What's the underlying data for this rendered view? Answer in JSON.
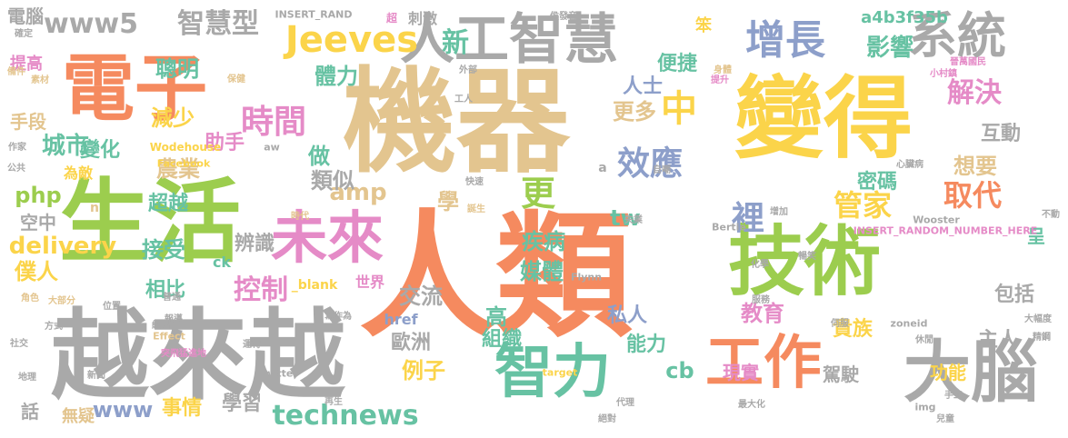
{
  "palette": {
    "orange": "#f58a5f",
    "tan": "#e3c58f",
    "green": "#9ccd4e",
    "yellow": "#fbd44a",
    "gray": "#a9a9a9",
    "blue": "#8d9fca",
    "teal": "#67c2a3",
    "pink": "#e58bc7"
  },
  "words": [
    {
      "text": "人類",
      "color": "orange"
    },
    {
      "text": "機器",
      "color": "tan"
    },
    {
      "text": "越來越",
      "color": "gray"
    },
    {
      "text": "變得",
      "color": "yellow"
    },
    {
      "text": "生活",
      "color": "green"
    },
    {
      "text": "電子",
      "color": "orange"
    },
    {
      "text": "技術",
      "color": "green"
    },
    {
      "text": "人工智慧",
      "color": "gray"
    },
    {
      "text": "大腦",
      "color": "gray"
    },
    {
      "text": "智力",
      "color": "teal"
    },
    {
      "text": "工作",
      "color": "orange"
    },
    {
      "text": "未來",
      "color": "pink"
    },
    {
      "text": "系統",
      "color": "gray"
    },
    {
      "text": "增長",
      "color": "blue"
    },
    {
      "text": "Jeeves",
      "color": "yellow"
    },
    {
      "text": "www5",
      "color": "gray"
    },
    {
      "text": "智慧型",
      "color": "gray"
    },
    {
      "text": "時間",
      "color": "pink"
    },
    {
      "text": "效應",
      "color": "blue"
    },
    {
      "text": "取代",
      "color": "orange"
    },
    {
      "text": "管家",
      "color": "yellow"
    },
    {
      "text": "解決",
      "color": "pink"
    },
    {
      "text": "technews",
      "color": "teal"
    },
    {
      "text": "delivery",
      "color": "yellow"
    },
    {
      "text": "新",
      "color": "teal"
    },
    {
      "text": "中",
      "color": "yellow"
    },
    {
      "text": "更",
      "color": "green"
    },
    {
      "text": "控制",
      "color": "pink"
    },
    {
      "text": "影響",
      "color": "teal"
    },
    {
      "text": "裡",
      "color": "blue"
    },
    {
      "text": "更多",
      "color": "tan"
    },
    {
      "text": "人士",
      "color": "blue"
    },
    {
      "text": "體力",
      "color": "teal"
    },
    {
      "text": "聰明",
      "color": "teal"
    },
    {
      "text": "城市",
      "color": "teal"
    },
    {
      "text": "農業",
      "color": "tan"
    },
    {
      "text": "amp",
      "color": "tan"
    },
    {
      "text": "tw",
      "color": "teal"
    },
    {
      "text": "php",
      "color": "green"
    },
    {
      "text": "做",
      "color": "teal"
    },
    {
      "text": "類似",
      "color": "gray"
    },
    {
      "text": "想要",
      "color": "tan"
    },
    {
      "text": "互動",
      "color": "gray"
    },
    {
      "text": "密碼",
      "color": "teal"
    },
    {
      "text": "便捷",
      "color": "teal"
    },
    {
      "text": "減少",
      "color": "yellow"
    },
    {
      "text": "手段",
      "color": "tan"
    },
    {
      "text": "變化",
      "color": "teal"
    },
    {
      "text": "助手",
      "color": "pink"
    },
    {
      "text": "超越",
      "color": "teal"
    },
    {
      "text": "空中",
      "color": "gray"
    },
    {
      "text": "接受",
      "color": "teal"
    },
    {
      "text": "辨識",
      "color": "gray"
    },
    {
      "text": "學",
      "color": "tan"
    },
    {
      "text": "疾病",
      "color": "teal"
    },
    {
      "text": "媒體",
      "color": "teal"
    },
    {
      "text": "僕人",
      "color": "yellow"
    },
    {
      "text": "相比",
      "color": "teal"
    },
    {
      "text": "交流",
      "color": "gray"
    },
    {
      "text": "教育",
      "color": "pink"
    },
    {
      "text": "包括",
      "color": "gray"
    },
    {
      "text": "呈",
      "color": "teal"
    },
    {
      "text": "主人",
      "color": "gray"
    },
    {
      "text": "貴族",
      "color": "yellow"
    },
    {
      "text": "私人",
      "color": "blue"
    },
    {
      "text": "高",
      "color": "teal"
    },
    {
      "text": "組織",
      "color": "teal"
    },
    {
      "text": "歐洲",
      "color": "gray"
    },
    {
      "text": "能力",
      "color": "teal"
    },
    {
      "text": "例子",
      "color": "yellow"
    },
    {
      "text": "cb",
      "color": "teal"
    },
    {
      "text": "現實",
      "color": "pink"
    },
    {
      "text": "駕駛",
      "color": "gray"
    },
    {
      "text": "功能",
      "color": "yellow"
    },
    {
      "text": "www",
      "color": "blue"
    },
    {
      "text": "事情",
      "color": "yellow"
    },
    {
      "text": "學習",
      "color": "gray"
    },
    {
      "text": "話",
      "color": "gray"
    },
    {
      "text": "無疑",
      "color": "tan"
    },
    {
      "text": "a4b3f35b",
      "color": "teal"
    },
    {
      "text": "笨",
      "color": "yellow"
    },
    {
      "text": "電腦",
      "color": "gray"
    },
    {
      "text": "提高",
      "color": "pink"
    },
    {
      "text": "為敵",
      "color": "yellow"
    },
    {
      "text": "刺激",
      "color": "gray"
    },
    {
      "text": "世界",
      "color": "pink"
    },
    {
      "text": "href",
      "color": "blue"
    },
    {
      "text": "ck",
      "color": "teal"
    },
    {
      "text": "_blank",
      "color": "yellow"
    },
    {
      "text": "n",
      "color": "tan"
    },
    {
      "text": "Wodehouse",
      "color": "yellow"
    },
    {
      "text": "INSERT_RAND",
      "color": "gray"
    },
    {
      "text": "Facebook",
      "color": "yellow"
    },
    {
      "text": "Twitter",
      "color": "gray"
    },
    {
      "text": "Flynn",
      "color": "gray"
    },
    {
      "text": "Bertie",
      "color": "gray"
    },
    {
      "text": "Wooster",
      "color": "gray"
    },
    {
      "text": "INSERT_RANDOM_NUMBER_HERE",
      "color": "pink"
    },
    {
      "text": "zoneid",
      "color": "gray"
    },
    {
      "text": "target",
      "color": "yellow"
    },
    {
      "text": "img",
      "color": "gray"
    },
    {
      "text": "Effect",
      "color": "tan"
    },
    {
      "text": "aw",
      "color": "gray"
    },
    {
      "text": "a",
      "color": "gray"
    },
    {
      "text": "確定",
      "color": "gray"
    },
    {
      "text": "備件",
      "color": "tan"
    },
    {
      "text": "素材",
      "color": "tan"
    },
    {
      "text": "作家",
      "color": "gray"
    },
    {
      "text": "公共",
      "color": "gray"
    },
    {
      "text": "外部",
      "color": "gray"
    },
    {
      "text": "工人",
      "color": "gray"
    },
    {
      "text": "保健",
      "color": "tan"
    },
    {
      "text": "超",
      "color": "pink"
    },
    {
      "text": "侯發音",
      "color": "gray"
    },
    {
      "text": "小村鎮",
      "color": "pink"
    },
    {
      "text": "晉萬國民",
      "color": "pink"
    },
    {
      "text": "身體",
      "color": "tan"
    },
    {
      "text": "提升",
      "color": "pink"
    },
    {
      "text": "時代",
      "color": "tan"
    },
    {
      "text": "快速",
      "color": "gray"
    },
    {
      "text": "誕生",
      "color": "tan"
    },
    {
      "text": "失業",
      "color": "gray"
    },
    {
      "text": "增加",
      "color": "gray"
    },
    {
      "text": "暢笑",
      "color": "gray"
    },
    {
      "text": "大幅度",
      "color": "gray"
    },
    {
      "text": "不動",
      "color": "gray"
    },
    {
      "text": "精鋼",
      "color": "gray"
    },
    {
      "text": "休閒",
      "color": "gray"
    },
    {
      "text": "伺服",
      "color": "gray"
    },
    {
      "text": "化學",
      "color": "gray"
    },
    {
      "text": "服務",
      "color": "gray"
    },
    {
      "text": "代理",
      "color": "gray"
    },
    {
      "text": "絕對",
      "color": "gray"
    },
    {
      "text": "手工",
      "color": "gray"
    },
    {
      "text": "兒童",
      "color": "gray"
    },
    {
      "text": "運轉",
      "color": "gray"
    },
    {
      "text": "再生",
      "color": "gray"
    },
    {
      "text": "社交",
      "color": "gray"
    },
    {
      "text": "地理",
      "color": "gray"
    },
    {
      "text": "方式",
      "color": "gray"
    },
    {
      "text": "網路",
      "color": "gray"
    },
    {
      "text": "突飛猛進地",
      "color": "pink"
    },
    {
      "text": "心臟病",
      "color": "gray"
    },
    {
      "text": "自嘲",
      "color": "gray"
    },
    {
      "text": "最大化",
      "color": "gray"
    },
    {
      "text": "新聞",
      "color": "gray"
    },
    {
      "text": "位置",
      "color": "gray"
    },
    {
      "text": "角色",
      "color": "tan"
    },
    {
      "text": "大部分",
      "color": "tan"
    },
    {
      "text": "普通",
      "color": "gray"
    },
    {
      "text": "報導",
      "color": "gray"
    },
    {
      "text": "寫作為",
      "color": "gray"
    },
    {
      "text": "智力",
      "color": "gray"
    },
    {
      "text": "代圈",
      "color": "gray"
    },
    {
      "text": "智能",
      "color": "gray"
    },
    {
      "text": "追逐",
      "color": "gray"
    },
    {
      "text": "鍵盤",
      "color": "gray"
    }
  ]
}
